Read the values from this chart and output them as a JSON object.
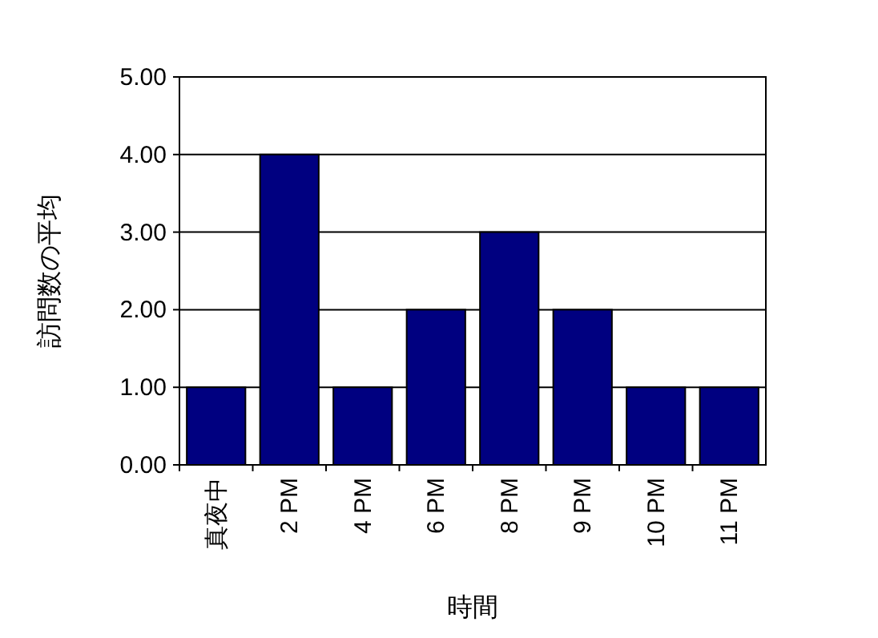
{
  "chart_data": {
    "type": "bar",
    "xlabel": "時間",
    "ylabel": "訪問数の平均",
    "categories": [
      "真夜中",
      "2 PM",
      "4 PM",
      "6 PM",
      "8 PM",
      "9 PM",
      "10 PM",
      "11 PM"
    ],
    "values": [
      1,
      4,
      1,
      2,
      3,
      2,
      1,
      1
    ],
    "color": "#000080",
    "ylim": [
      0,
      5
    ],
    "yticks": [
      {
        "value": 0,
        "label": "0.00"
      },
      {
        "value": 1,
        "label": "1.00"
      },
      {
        "value": 2,
        "label": "2.00"
      },
      {
        "value": 3,
        "label": "3.00"
      },
      {
        "value": 4,
        "label": "4.00"
      },
      {
        "value": 5,
        "label": "5.00"
      }
    ],
    "grid": "y"
  }
}
